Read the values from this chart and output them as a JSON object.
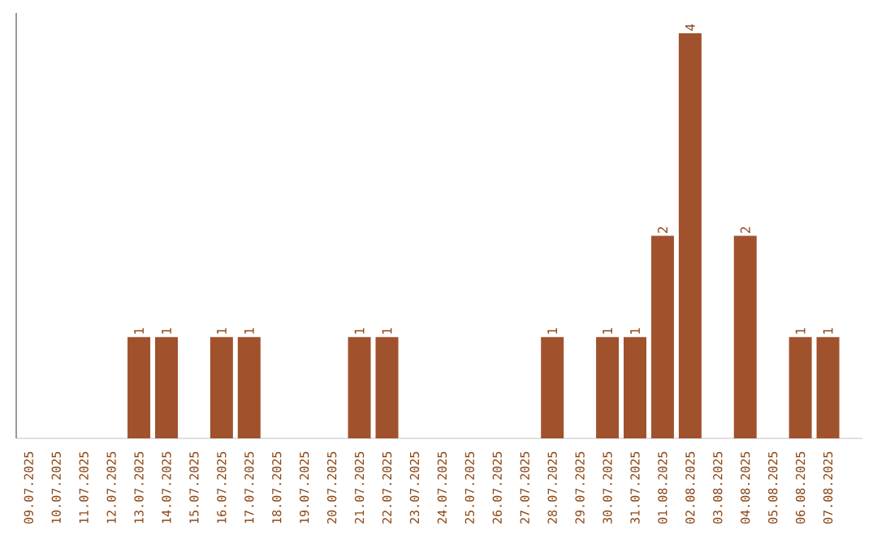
{
  "chart_data": {
    "type": "bar",
    "color": "#a0522d",
    "categories": [
      "09.07.2025",
      "10.07.2025",
      "11.07.2025",
      "12.07.2025",
      "13.07.2025",
      "14.07.2025",
      "15.07.2025",
      "16.07.2025",
      "17.07.2025",
      "18.07.2025",
      "19.07.2025",
      "20.07.2025",
      "21.07.2025",
      "22.07.2025",
      "23.07.2025",
      "24.07.2025",
      "25.07.2025",
      "26.07.2025",
      "27.07.2025",
      "28.07.2025",
      "29.07.2025",
      "30.07.2025",
      "31.07.2025",
      "01.08.2025",
      "02.08.2025",
      "03.08.2025",
      "04.08.2025",
      "05.08.2025",
      "06.08.2025",
      "07.08.2025"
    ],
    "values": [
      0,
      0,
      0,
      0,
      1,
      1,
      0,
      1,
      1,
      0,
      0,
      0,
      1,
      1,
      0,
      0,
      0,
      0,
      0,
      1,
      0,
      1,
      1,
      2,
      4,
      0,
      2,
      0,
      1,
      1
    ],
    "value_labels": [
      null,
      null,
      null,
      null,
      "1",
      "1",
      null,
      "1",
      "1",
      null,
      null,
      null,
      "1",
      "1",
      null,
      null,
      null,
      null,
      null,
      "1",
      null,
      "1",
      "1",
      "2",
      "4",
      null,
      "2",
      null,
      "1",
      "1"
    ],
    "tick_labels": "x"
  }
}
